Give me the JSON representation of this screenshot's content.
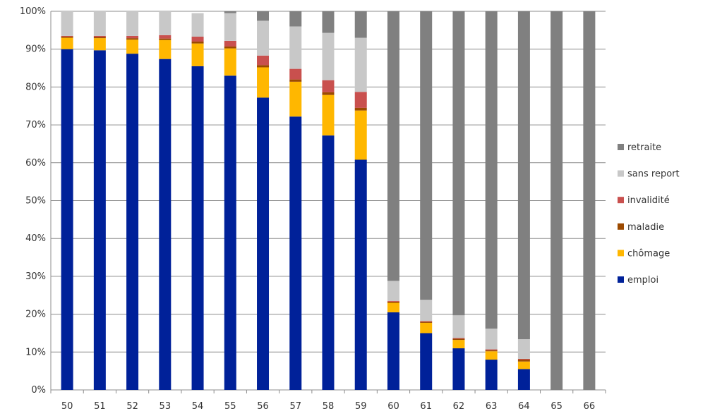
{
  "chart_data": {
    "type": "bar",
    "stacked": true,
    "percent": true,
    "categories": [
      "50",
      "51",
      "52",
      "53",
      "54",
      "55",
      "56",
      "57",
      "58",
      "59",
      "60",
      "61",
      "62",
      "63",
      "64",
      "65",
      "66"
    ],
    "series": [
      {
        "name": "emploi",
        "color": "#002199",
        "values": [
          90,
          89.7,
          88.8,
          87.4,
          85.5,
          83,
          77.2,
          72.2,
          67.2,
          60.8,
          20.5,
          15,
          11,
          8,
          5.5,
          0,
          0
        ]
      },
      {
        "name": "chômage",
        "color": "#FFB700",
        "values": [
          3,
          3.2,
          3.7,
          5,
          6,
          7.2,
          8,
          9.2,
          10.7,
          13,
          2.5,
          2.7,
          2.2,
          2.2,
          2,
          0,
          0
        ]
      },
      {
        "name": "maladie",
        "color": "#9C4A00",
        "values": [
          0.3,
          0.3,
          0.4,
          0.4,
          0.5,
          0.5,
          0.6,
          0.6,
          0.7,
          0.7,
          0.3,
          0.3,
          0.3,
          0.3,
          0.5,
          0,
          0
        ]
      },
      {
        "name": "invalidité",
        "color": "#C9504E",
        "values": [
          0.2,
          0.3,
          0.6,
          0.9,
          1.3,
          1.5,
          2.5,
          2.8,
          3.2,
          4.2,
          0.2,
          0.2,
          0.2,
          0.2,
          0.2,
          0,
          0
        ]
      },
      {
        "name": "sans report",
        "color": "#C8C8C8",
        "values": [
          6.5,
          6.5,
          6.5,
          6.3,
          6.2,
          7.3,
          9.2,
          11.2,
          12.5,
          14.3,
          5.3,
          5.6,
          6,
          5.5,
          5.2,
          0,
          0
        ]
      },
      {
        "name": "retraite",
        "color": "#808080",
        "values": [
          0,
          0,
          0,
          0,
          0,
          0.5,
          2.5,
          4,
          5.7,
          7,
          71.2,
          76.2,
          80.3,
          83.8,
          86.6,
          100,
          100
        ]
      }
    ],
    "ylim": [
      0,
      100
    ],
    "yticks": [
      "0%",
      "10%",
      "20%",
      "30%",
      "40%",
      "50%",
      "60%",
      "70%",
      "80%",
      "90%",
      "100%"
    ],
    "grid": true,
    "legend_position": "right",
    "title": "",
    "xlabel": "",
    "ylabel": ""
  }
}
